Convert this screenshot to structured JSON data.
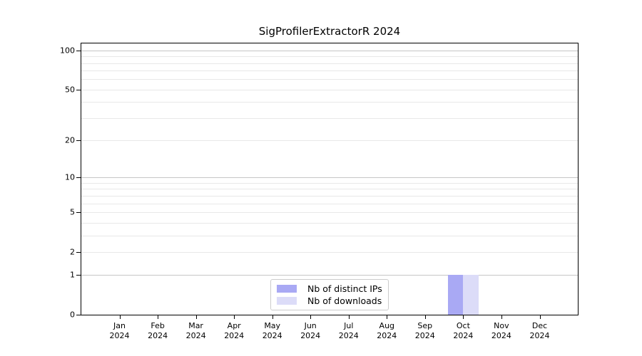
{
  "chart_data": {
    "type": "bar",
    "title": "SigProfilerExtractorR 2024",
    "year_label": "2024",
    "categories": [
      "Jan",
      "Feb",
      "Mar",
      "Apr",
      "May",
      "Jun",
      "Jul",
      "Aug",
      "Sep",
      "Oct",
      "Nov",
      "Dec"
    ],
    "series": [
      {
        "name": "Nb of distinct IPs",
        "color": "#a9a9f4",
        "values": [
          0,
          0,
          0,
          0,
          0,
          0,
          0,
          0,
          0,
          1,
          0,
          0
        ]
      },
      {
        "name": "Nb of downloads",
        "color": "#dcdcf8",
        "values": [
          0,
          0,
          0,
          0,
          0,
          0,
          0,
          0,
          0,
          1,
          0,
          0
        ]
      }
    ],
    "yscale": "log1p",
    "ylim": [
      0,
      113
    ],
    "y_ticks": [
      0,
      1,
      2,
      5,
      10,
      20,
      50,
      100
    ],
    "grid_major": [
      1,
      10,
      100
    ],
    "grid_minor": [
      2,
      3,
      4,
      5,
      6,
      7,
      8,
      9,
      20,
      30,
      40,
      50,
      60,
      70,
      80,
      90
    ],
    "legend_position": "lower center",
    "colors": {
      "axis": "#000000",
      "grid_major": "#c6c6c6",
      "grid_minor": "#e8e8e8",
      "legend_border": "#cccccc",
      "background": "#ffffff",
      "text": "#000000"
    }
  }
}
